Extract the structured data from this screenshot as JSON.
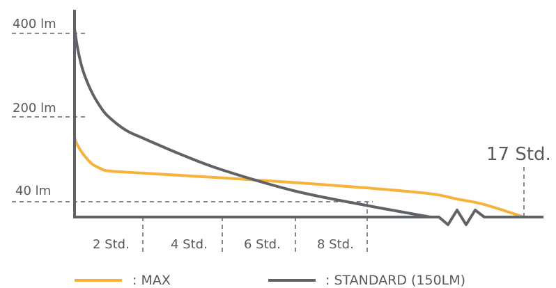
{
  "colors": {
    "max": "#f6b23a",
    "standard": "#5f6367",
    "axis": "#5f6367",
    "guide": "#5f6367",
    "text": "#555a5e"
  },
  "chart_data": {
    "type": "line",
    "x_unit": "Std.",
    "y_unit": "lm",
    "grid": false,
    "legend_position": "bottom",
    "axis_break_on_x": true,
    "y_tick_labels": [
      "400 lm",
      "200 lm",
      "40 lm"
    ],
    "x_tick_labels": [
      "2 Std.",
      "4 Std.",
      "6 Std.",
      "8 Std."
    ],
    "end_label": "17 Std.",
    "series": [
      {
        "name": ": MAX",
        "color": "#f6b23a",
        "x": [
          0,
          0.1,
          0.25,
          0.5,
          0.75,
          1,
          2,
          4,
          6,
          8,
          10,
          12,
          14,
          17
        ],
        "y": [
          160,
          145,
          130,
          112,
          103,
          98,
          94,
          85,
          76,
          66,
          55,
          45,
          33,
          0
        ]
      },
      {
        "name": ": STANDARD (150LM)",
        "color": "#5f6367",
        "x": [
          0,
          0.1,
          0.25,
          0.5,
          0.75,
          1,
          1.5,
          2,
          3,
          4,
          6,
          8,
          10
        ],
        "y": [
          410,
          360,
          310,
          260,
          225,
          200,
          175,
          160,
          128,
          100,
          60,
          30,
          0
        ]
      }
    ],
    "y_ticks": [
      400,
      200,
      40
    ],
    "x_ticks": [
      2,
      4,
      6,
      8
    ],
    "end_x": 17,
    "ylim": [
      0,
      430
    ]
  }
}
